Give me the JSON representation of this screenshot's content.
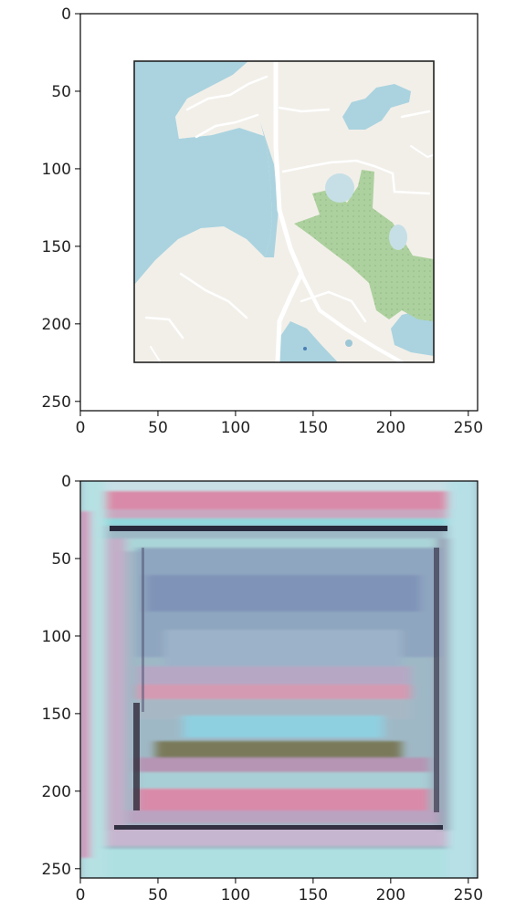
{
  "figure": {
    "panels": [
      {
        "name": "top-panel",
        "content": "map-image",
        "x_ticks": [
          "0",
          "50",
          "100",
          "150",
          "200",
          "250"
        ],
        "y_ticks": [
          "0",
          "50",
          "100",
          "150",
          "200",
          "250"
        ]
      },
      {
        "name": "bottom-panel",
        "content": "generated-image",
        "x_ticks": [
          "0",
          "50",
          "100",
          "150",
          "200",
          "250"
        ],
        "y_ticks": [
          "0",
          "50",
          "100",
          "150",
          "200",
          "250"
        ]
      }
    ]
  },
  "chart_data": [
    {
      "type": "heatmap",
      "description_values": "image displayed with imshow",
      "xlim": [
        0,
        256
      ],
      "ylim": [
        256,
        0
      ],
      "xticks": [
        0,
        50,
        100,
        150,
        200,
        250
      ],
      "yticks": [
        0,
        50,
        100,
        150,
        200,
        250
      ],
      "image_extent": {
        "x": [
          35,
          227
        ],
        "y": [
          30,
          224
        ]
      },
      "colors": {
        "water": "#aad3df",
        "land": "#f2efe9",
        "park": "#add19e",
        "road": "#ffffff",
        "frame": "#000000"
      }
    },
    {
      "type": "heatmap",
      "xlim": [
        0,
        256
      ],
      "ylim": [
        256,
        0
      ],
      "xticks": [
        0,
        50,
        100,
        150,
        200,
        250
      ],
      "yticks": [
        0,
        50,
        100,
        150,
        200,
        250
      ],
      "colors": {
        "pink": "#d98aa8",
        "cyan": "#8fd8dc",
        "purple": "#8a7fa8",
        "dark": "#1a1a2a",
        "olive": "#7a7a5a"
      }
    }
  ]
}
